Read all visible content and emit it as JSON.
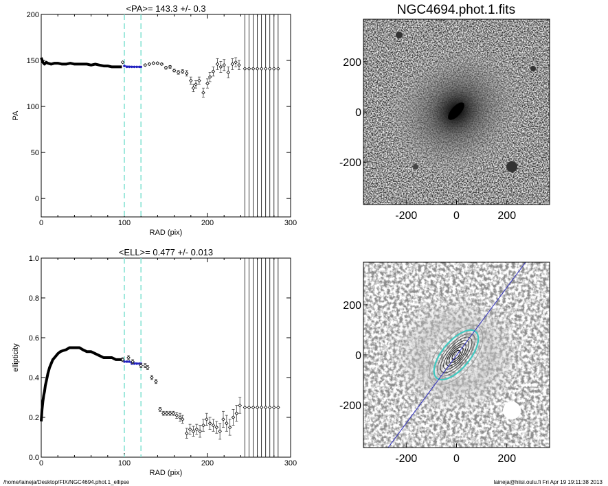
{
  "chart_data": [
    {
      "type": "scatter",
      "title": "<PA>= 143.3 +/-   0.3",
      "xlabel": "RAD (pix)",
      "ylabel": "PA",
      "xlim": [
        0,
        300
      ],
      "ylim": [
        -20,
        200
      ],
      "xticks": [
        "0",
        "100",
        "200",
        "300"
      ],
      "yticks": [
        "0",
        "50",
        "100",
        "150",
        "200"
      ],
      "vlines_dashed": [
        100,
        120
      ],
      "vlines_solid": [
        245,
        250,
        255,
        260,
        265,
        270,
        275,
        280,
        285
      ],
      "dense": {
        "x": [
          0,
          2,
          4,
          6,
          8,
          12,
          16,
          20,
          25,
          30,
          35,
          40,
          45,
          50,
          55,
          60,
          65,
          70,
          75,
          80,
          85,
          90,
          95,
          97
        ],
        "y": [
          153,
          148,
          146,
          148,
          147,
          146,
          147,
          147,
          146,
          146,
          147,
          146,
          146,
          146,
          146,
          145,
          146,
          145,
          144,
          144,
          143,
          143,
          143,
          143
        ]
      },
      "fit_points": {
        "x": [
          100,
          103,
          106,
          109,
          112,
          115,
          118,
          120
        ],
        "y": [
          144,
          143,
          143,
          143,
          143,
          143,
          143,
          143
        ]
      },
      "points": [
        {
          "x": 98,
          "y": 148,
          "e": 0.5
        },
        {
          "x": 125,
          "y": 145,
          "e": 1
        },
        {
          "x": 130,
          "y": 146,
          "e": 1
        },
        {
          "x": 135,
          "y": 147,
          "e": 1
        },
        {
          "x": 140,
          "y": 147,
          "e": 1
        },
        {
          "x": 145,
          "y": 146,
          "e": 1
        },
        {
          "x": 150,
          "y": 142,
          "e": 1.5
        },
        {
          "x": 155,
          "y": 143,
          "e": 1.5
        },
        {
          "x": 160,
          "y": 139,
          "e": 1.5
        },
        {
          "x": 165,
          "y": 137,
          "e": 2
        },
        {
          "x": 170,
          "y": 138,
          "e": 2
        },
        {
          "x": 175,
          "y": 136,
          "e": 3
        },
        {
          "x": 180,
          "y": 128,
          "e": 4
        },
        {
          "x": 183,
          "y": 120,
          "e": 4
        },
        {
          "x": 186,
          "y": 124,
          "e": 4
        },
        {
          "x": 190,
          "y": 128,
          "e": 4
        },
        {
          "x": 195,
          "y": 115,
          "e": 5
        },
        {
          "x": 200,
          "y": 125,
          "e": 5
        },
        {
          "x": 203,
          "y": 132,
          "e": 5
        },
        {
          "x": 207,
          "y": 138,
          "e": 5
        },
        {
          "x": 212,
          "y": 146,
          "e": 6
        },
        {
          "x": 216,
          "y": 143,
          "e": 6
        },
        {
          "x": 220,
          "y": 145,
          "e": 6
        },
        {
          "x": 225,
          "y": 137,
          "e": 6
        },
        {
          "x": 230,
          "y": 146,
          "e": 6
        },
        {
          "x": 234,
          "y": 148,
          "e": 5
        },
        {
          "x": 238,
          "y": 145,
          "e": 5
        },
        {
          "x": 245,
          "y": 141,
          "e": 0
        },
        {
          "x": 250,
          "y": 141,
          "e": 0
        },
        {
          "x": 255,
          "y": 141,
          "e": 0
        },
        {
          "x": 260,
          "y": 141,
          "e": 0
        },
        {
          "x": 265,
          "y": 141,
          "e": 0
        },
        {
          "x": 270,
          "y": 141,
          "e": 0
        },
        {
          "x": 275,
          "y": 141,
          "e": 0
        },
        {
          "x": 280,
          "y": 141,
          "e": 0
        },
        {
          "x": 285,
          "y": 141,
          "e": 0
        }
      ]
    },
    {
      "type": "scatter",
      "title": "<ELL>= 0.477 +/-  0.013",
      "xlabel": "RAD (pix)",
      "ylabel": "ellipticity",
      "xlim": [
        0,
        300
      ],
      "ylim": [
        0.0,
        1.0
      ],
      "xticks": [
        "0",
        "100",
        "200",
        "300"
      ],
      "yticks": [
        "0.0",
        "0.2",
        "0.4",
        "0.6",
        "0.8",
        "1.0"
      ],
      "vlines_dashed": [
        100,
        120
      ],
      "vlines_solid": [
        245,
        250,
        255,
        260,
        265,
        270,
        275,
        280,
        285
      ],
      "dense": {
        "x": [
          0,
          1,
          2,
          3,
          4,
          5,
          6,
          8,
          10,
          12,
          14,
          16,
          18,
          20,
          23,
          26,
          30,
          34,
          38,
          42,
          46,
          50,
          55,
          60,
          65,
          70,
          75,
          80,
          85,
          90,
          95,
          97
        ],
        "y": [
          0.18,
          0.24,
          0.28,
          0.31,
          0.33,
          0.36,
          0.38,
          0.42,
          0.45,
          0.47,
          0.49,
          0.5,
          0.51,
          0.52,
          0.53,
          0.535,
          0.54,
          0.55,
          0.55,
          0.55,
          0.55,
          0.54,
          0.53,
          0.53,
          0.52,
          0.51,
          0.5,
          0.5,
          0.5,
          0.49,
          0.49,
          0.49
        ]
      },
      "fit_points": {
        "x": [
          100,
          103,
          106,
          109,
          112,
          115,
          118,
          120
        ],
        "y": [
          0.48,
          0.48,
          0.48,
          0.47,
          0.47,
          0.47,
          0.47,
          0.47
        ]
      },
      "points": [
        {
          "x": 98,
          "y": 0.49,
          "e": 0.01
        },
        {
          "x": 105,
          "y": 0.5,
          "e": 0.01
        },
        {
          "x": 110,
          "y": 0.48,
          "e": 0.01
        },
        {
          "x": 120,
          "y": 0.46,
          "e": 0.01
        },
        {
          "x": 125,
          "y": 0.46,
          "e": 0.01
        },
        {
          "x": 128,
          "y": 0.45,
          "e": 0.01
        },
        {
          "x": 133,
          "y": 0.4,
          "e": 0.01
        },
        {
          "x": 138,
          "y": 0.38,
          "e": 0.01
        },
        {
          "x": 143,
          "y": 0.24,
          "e": 0.01
        },
        {
          "x": 147,
          "y": 0.22,
          "e": 0.01
        },
        {
          "x": 151,
          "y": 0.22,
          "e": 0.01
        },
        {
          "x": 155,
          "y": 0.22,
          "e": 0.01
        },
        {
          "x": 159,
          "y": 0.22,
          "e": 0.01
        },
        {
          "x": 163,
          "y": 0.21,
          "e": 0.015
        },
        {
          "x": 167,
          "y": 0.2,
          "e": 0.02
        },
        {
          "x": 170,
          "y": 0.19,
          "e": 0.02
        },
        {
          "x": 175,
          "y": 0.12,
          "e": 0.025
        },
        {
          "x": 179,
          "y": 0.14,
          "e": 0.025
        },
        {
          "x": 183,
          "y": 0.13,
          "e": 0.025
        },
        {
          "x": 187,
          "y": 0.14,
          "e": 0.025
        },
        {
          "x": 191,
          "y": 0.13,
          "e": 0.03
        },
        {
          "x": 195,
          "y": 0.16,
          "e": 0.03
        },
        {
          "x": 199,
          "y": 0.19,
          "e": 0.03
        },
        {
          "x": 203,
          "y": 0.17,
          "e": 0.03
        },
        {
          "x": 207,
          "y": 0.16,
          "e": 0.03
        },
        {
          "x": 211,
          "y": 0.15,
          "e": 0.03
        },
        {
          "x": 215,
          "y": 0.13,
          "e": 0.04
        },
        {
          "x": 219,
          "y": 0.19,
          "e": 0.04
        },
        {
          "x": 223,
          "y": 0.17,
          "e": 0.04
        },
        {
          "x": 227,
          "y": 0.15,
          "e": 0.04
        },
        {
          "x": 231,
          "y": 0.2,
          "e": 0.04
        },
        {
          "x": 235,
          "y": 0.22,
          "e": 0.04
        },
        {
          "x": 239,
          "y": 0.26,
          "e": 0.04
        },
        {
          "x": 245,
          "y": 0.25,
          "e": 0
        },
        {
          "x": 250,
          "y": 0.25,
          "e": 0
        },
        {
          "x": 255,
          "y": 0.25,
          "e": 0
        },
        {
          "x": 260,
          "y": 0.25,
          "e": 0
        },
        {
          "x": 265,
          "y": 0.25,
          "e": 0
        },
        {
          "x": 270,
          "y": 0.25,
          "e": 0
        },
        {
          "x": 275,
          "y": 0.25,
          "e": 0
        },
        {
          "x": 280,
          "y": 0.25,
          "e": 0
        },
        {
          "x": 285,
          "y": 0.25,
          "e": 0
        }
      ]
    },
    {
      "type": "heatmap",
      "title": "NGC4694.phot.1.fits",
      "xlim": [
        -370,
        370
      ],
      "ylim": [
        -370,
        370
      ],
      "xticks": [
        "-200",
        "0",
        "200"
      ],
      "yticks": [
        "-200",
        "0",
        "200"
      ]
    },
    {
      "type": "heatmap",
      "title": "",
      "xlim": [
        -370,
        370
      ],
      "ylim": [
        -370,
        370
      ],
      "xticks": [
        "-200",
        "0",
        "200"
      ],
      "yticks": [
        "-200",
        "0",
        "200"
      ]
    }
  ],
  "footer": {
    "left": "/home/laineja/Desktop/FIX/NGC4694.phot.1_ellipse",
    "right": "laineja@hiisi.oulu.fi  Fri Apr 19 19:11:38 2013"
  },
  "colors": {
    "dashed": "#7fe0d0",
    "fit": "#2020c0",
    "ellipse": "#40c8c0",
    "line": "#3030c0"
  }
}
